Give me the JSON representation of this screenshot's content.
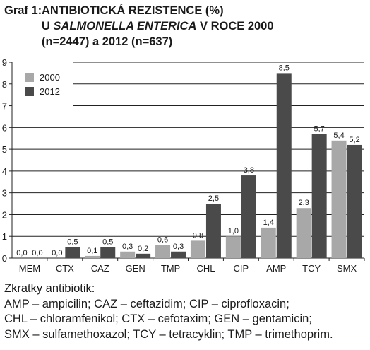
{
  "title": {
    "label": "Graf 1:",
    "line1": "ANTIBIOTICKÁ REZISTENCE (%)",
    "line2_pre": "U ",
    "line2_italic": "SALMONELLA ENTERICA",
    "line2_post": " V ROCE 2000",
    "line3": "(n=2447) a 2012 (n=637)"
  },
  "chart_data": {
    "type": "bar",
    "categories": [
      "MEM",
      "CTX",
      "CAZ",
      "GEN",
      "TMP",
      "CHL",
      "CIP",
      "AMP",
      "TCY",
      "SMX"
    ],
    "series": [
      {
        "name": "2000",
        "color": "#a8a8a8",
        "values": [
          0.0,
          0.0,
          0.1,
          0.3,
          0.6,
          0.8,
          1.0,
          1.4,
          2.3,
          5.4
        ],
        "labels": [
          "0,0",
          "0,0",
          "0,1",
          "0,3",
          "0,6",
          "0,8",
          "1,0",
          "1,4",
          "2,3",
          "5,4"
        ]
      },
      {
        "name": "2012",
        "color": "#4a4a4a",
        "values": [
          0.0,
          0.5,
          0.5,
          0.2,
          0.3,
          2.5,
          3.8,
          8.5,
          5.7,
          5.2
        ],
        "labels": [
          "0,0",
          "0,5",
          "0,5",
          "0,2",
          "0,3",
          "2,5",
          "3,8",
          "8,5",
          "5,7",
          "5,2"
        ]
      }
    ],
    "ylim": [
      0,
      9
    ],
    "yticks": [
      "0",
      "1",
      "2",
      "3",
      "4",
      "5",
      "6",
      "7",
      "8",
      "9"
    ],
    "grid": "horizontal",
    "legend_position": "top-left"
  },
  "footer": {
    "heading": "Zkratky antibiotik:",
    "line1": "AMP – ampicilin; CAZ – ceftazidim; CIP – ciprofloxacin;",
    "line2": "CHL – chloramfenikol; CTX – cefotaxim; GEN – gentamicin;",
    "line3": "SMX – sulfamethoxazol; TCY – tetracyklin; TMP – trimethoprim."
  }
}
